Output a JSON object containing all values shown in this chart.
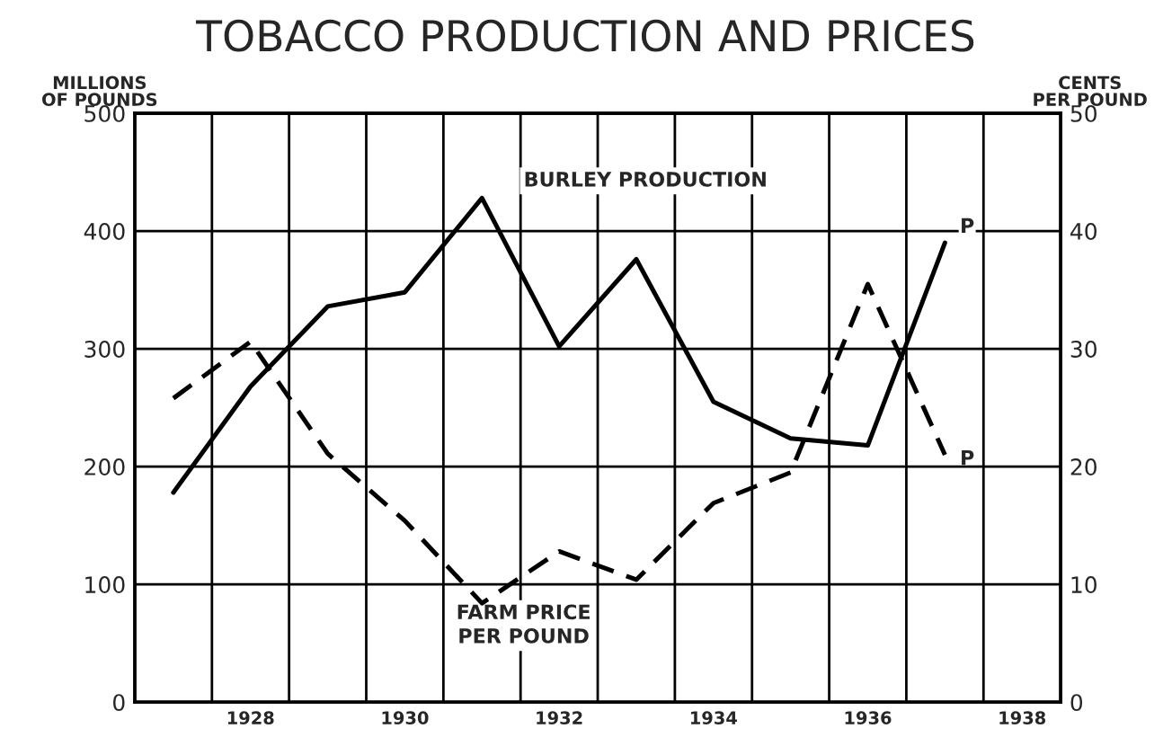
{
  "chart_data": {
    "type": "line",
    "title": "TOBACCO PRODUCTION AND PRICES",
    "ylabel": "MILLIONS\nOF POUNDS",
    "y2label": "CENTS\nPER POUND",
    "x": [
      1927,
      1928,
      1929,
      1930,
      1931,
      1932,
      1933,
      1934,
      1935,
      1936,
      1937
    ],
    "series": [
      {
        "name": "BURLEY PRODUCTION",
        "color": "#000000",
        "line_style": "solid",
        "values": [
          178,
          268,
          336,
          348,
          428,
          302,
          376,
          255,
          224,
          218,
          390
        ]
      },
      {
        "name": "FARM PRICE\nPER POUND",
        "color": "#000000",
        "line_style": "dashed",
        "axis": "y2",
        "values": [
          25.8,
          30.6,
          21.1,
          15.4,
          8.4,
          12.8,
          10.4,
          16.9,
          19.5,
          35.5,
          21
        ]
      }
    ],
    "annotations": [
      {
        "text": "P",
        "x": 1937,
        "y": 390
      },
      "P"
    ],
    "xlim": [
      1926.5,
      1938.5
    ],
    "xticks": [
      {
        "value": 1926.5,
        "label": null
      },
      {
        "value": 1927.5,
        "label": null
      },
      1928,
      {
        "value": 1928.5,
        "label": null
      },
      {
        "value": 1929.5,
        "label": null
      },
      1930,
      {
        "value": 1930.5,
        "label": null
      },
      {
        "value": 1931.5,
        "label": null
      },
      1932,
      {
        "value": 1932.5,
        "label": null
      },
      {
        "value": 1933.5,
        "label": null
      },
      1934,
      {
        "value": 1934.5,
        "label": null
      },
      {
        "value": 1935.5,
        "label": null
      },
      1936,
      {
        "value": 1936.5,
        "label": null
      },
      {
        "value": 1937.5,
        "label": null
      },
      1938,
      {
        "value": 1938.5,
        "label": null
      }
    ],
    "ylim": [
      0,
      500
    ],
    "yticks": [
      0,
      100,
      200,
      300,
      400,
      500
    ],
    "y2lim": [
      0,
      50
    ],
    "y2ticks": [
      0,
      10,
      20,
      30,
      40,
      50
    ],
    "grid": true,
    "legend": false,
    "marker": "none"
  }
}
